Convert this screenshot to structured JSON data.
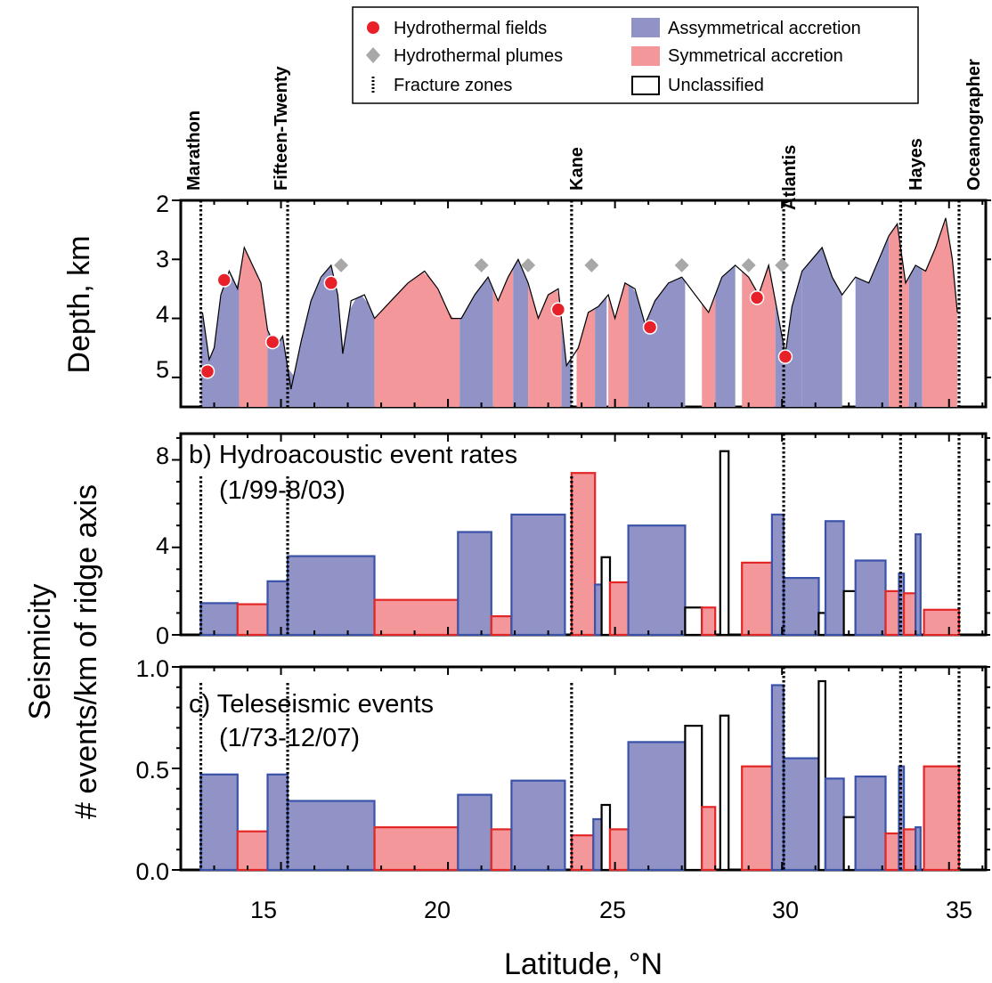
{
  "legend": {
    "items": [
      {
        "id": "hf",
        "label": "Hydrothermal fields",
        "symbol": "circle",
        "color": "#e8202a"
      },
      {
        "id": "hp",
        "label": "Hydrothermal plumes",
        "symbol": "diamond",
        "color": "#a8a8a8"
      },
      {
        "id": "fz",
        "label": "Fracture zones",
        "symbol": "dotted-line",
        "color": "#000000"
      },
      {
        "id": "asym",
        "label": "Assymmetrical accretion",
        "symbol": "box",
        "color": "#9193c7"
      },
      {
        "id": "sym",
        "label": "Symmetrical accretion",
        "symbol": "box",
        "color": "#f3979a"
      },
      {
        "id": "uncl",
        "label": "Unclassified",
        "symbol": "box-outline",
        "color": "#ffffff"
      }
    ]
  },
  "colors": {
    "asym_fill": "#9193c7",
    "asym_stroke": "#3a52a8",
    "sym_fill": "#f3979a",
    "sym_stroke": "#e32626",
    "uncl_stroke": "#000000",
    "hydrothermal_field": "#e8202a",
    "plume": "#a8a8a8"
  },
  "x_axis": {
    "label": "Latitude, °N",
    "ticks": [
      "15",
      "20",
      "25",
      "30",
      "35"
    ],
    "xlim": [
      12.0,
      36.1
    ]
  },
  "shared_y_label": {
    "line1": "Seismicity",
    "line2": "# events/km of ridge axis"
  },
  "fracture_zones": [
    {
      "name": "Marathon",
      "lat": 12.6
    },
    {
      "name": "Fifteen-Twenty",
      "lat": 15.2
    },
    {
      "name": "Kane",
      "lat": 23.7
    },
    {
      "name": "Atlantis",
      "lat": 30.05
    },
    {
      "name": "Hayes",
      "lat": 33.55
    },
    {
      "name": "Oceanographer",
      "lat": 35.3
    }
  ],
  "chart_data": [
    {
      "type": "area",
      "panel": "a",
      "ylabel": "Depth, km",
      "yticks": [
        "2",
        "3",
        "4",
        "5"
      ],
      "ylim": [
        5.5,
        2.0
      ],
      "profile": [
        {
          "lat": 12.65,
          "depth": 3.9
        },
        {
          "lat": 12.85,
          "depth": 4.7
        },
        {
          "lat": 13.0,
          "depth": 4.5
        },
        {
          "lat": 13.2,
          "depth": 3.6
        },
        {
          "lat": 13.45,
          "depth": 3.2
        },
        {
          "lat": 13.7,
          "depth": 3.5
        },
        {
          "lat": 13.9,
          "depth": 2.8
        },
        {
          "lat": 14.15,
          "depth": 3.1
        },
        {
          "lat": 14.4,
          "depth": 3.4
        },
        {
          "lat": 14.6,
          "depth": 4.2
        },
        {
          "lat": 14.85,
          "depth": 4.5
        },
        {
          "lat": 15.05,
          "depth": 4.3
        },
        {
          "lat": 15.3,
          "depth": 5.2
        },
        {
          "lat": 15.6,
          "depth": 4.4
        },
        {
          "lat": 15.9,
          "depth": 3.7
        },
        {
          "lat": 16.2,
          "depth": 3.3
        },
        {
          "lat": 16.5,
          "depth": 3.1
        },
        {
          "lat": 16.7,
          "depth": 3.6
        },
        {
          "lat": 16.85,
          "depth": 4.6
        },
        {
          "lat": 17.1,
          "depth": 3.7
        },
        {
          "lat": 17.5,
          "depth": 3.6
        },
        {
          "lat": 17.8,
          "depth": 4.0
        },
        {
          "lat": 18.3,
          "depth": 3.7
        },
        {
          "lat": 18.8,
          "depth": 3.4
        },
        {
          "lat": 19.3,
          "depth": 3.2
        },
        {
          "lat": 19.7,
          "depth": 3.5
        },
        {
          "lat": 20.1,
          "depth": 4.0
        },
        {
          "lat": 20.4,
          "depth": 4.0
        },
        {
          "lat": 20.8,
          "depth": 3.6
        },
        {
          "lat": 21.2,
          "depth": 3.3
        },
        {
          "lat": 21.5,
          "depth": 3.7
        },
        {
          "lat": 21.8,
          "depth": 3.3
        },
        {
          "lat": 22.1,
          "depth": 3.0
        },
        {
          "lat": 22.4,
          "depth": 3.4
        },
        {
          "lat": 22.7,
          "depth": 4.0
        },
        {
          "lat": 23.0,
          "depth": 3.6
        },
        {
          "lat": 23.3,
          "depth": 3.5
        },
        {
          "lat": 23.55,
          "depth": 4.8
        },
        {
          "lat": 23.9,
          "depth": 4.5
        },
        {
          "lat": 24.2,
          "depth": 3.9
        },
        {
          "lat": 24.5,
          "depth": 3.8
        },
        {
          "lat": 24.8,
          "depth": 3.6
        },
        {
          "lat": 25.0,
          "depth": 4.0
        },
        {
          "lat": 25.3,
          "depth": 3.4
        },
        {
          "lat": 25.6,
          "depth": 3.5
        },
        {
          "lat": 25.9,
          "depth": 4.1
        },
        {
          "lat": 26.2,
          "depth": 3.7
        },
        {
          "lat": 26.6,
          "depth": 3.4
        },
        {
          "lat": 27.0,
          "depth": 3.3
        },
        {
          "lat": 27.4,
          "depth": 3.6
        },
        {
          "lat": 27.8,
          "depth": 3.9
        },
        {
          "lat": 28.2,
          "depth": 3.3
        },
        {
          "lat": 28.6,
          "depth": 3.1
        },
        {
          "lat": 29.0,
          "depth": 3.3
        },
        {
          "lat": 29.3,
          "depth": 3.6
        },
        {
          "lat": 29.6,
          "depth": 3.1
        },
        {
          "lat": 29.9,
          "depth": 4.0
        },
        {
          "lat": 30.1,
          "depth": 4.6
        },
        {
          "lat": 30.3,
          "depth": 3.8
        },
        {
          "lat": 30.6,
          "depth": 3.2
        },
        {
          "lat": 30.9,
          "depth": 3.0
        },
        {
          "lat": 31.2,
          "depth": 2.8
        },
        {
          "lat": 31.5,
          "depth": 3.3
        },
        {
          "lat": 31.8,
          "depth": 3.6
        },
        {
          "lat": 32.2,
          "depth": 3.3
        },
        {
          "lat": 32.6,
          "depth": 3.4
        },
        {
          "lat": 32.9,
          "depth": 3.0
        },
        {
          "lat": 33.2,
          "depth": 2.6
        },
        {
          "lat": 33.45,
          "depth": 2.4
        },
        {
          "lat": 33.7,
          "depth": 3.4
        },
        {
          "lat": 34.0,
          "depth": 3.1
        },
        {
          "lat": 34.3,
          "depth": 3.2
        },
        {
          "lat": 34.6,
          "depth": 2.8
        },
        {
          "lat": 34.9,
          "depth": 2.3
        },
        {
          "lat": 35.1,
          "depth": 3.0
        },
        {
          "lat": 35.25,
          "depth": 3.9
        }
      ],
      "segments": [
        {
          "from": 12.6,
          "to": 13.75,
          "class": "asym"
        },
        {
          "from": 13.75,
          "to": 14.6,
          "class": "sym"
        },
        {
          "from": 14.6,
          "to": 15.2,
          "class": "asym"
        },
        {
          "from": 15.2,
          "to": 17.8,
          "class": "asym"
        },
        {
          "from": 17.8,
          "to": 20.35,
          "class": "sym"
        },
        {
          "from": 20.35,
          "to": 21.35,
          "class": "asym"
        },
        {
          "from": 21.35,
          "to": 21.95,
          "class": "sym"
        },
        {
          "from": 21.95,
          "to": 22.4,
          "class": "asym"
        },
        {
          "from": 22.4,
          "to": 23.4,
          "class": "sym"
        },
        {
          "from": 23.4,
          "to": 23.7,
          "class": "asym"
        },
        {
          "from": 23.85,
          "to": 24.4,
          "class": "sym"
        },
        {
          "from": 24.4,
          "to": 24.75,
          "class": "asym"
        },
        {
          "from": 24.8,
          "to": 25.4,
          "class": "sym"
        },
        {
          "from": 25.4,
          "to": 27.1,
          "class": "asym"
        },
        {
          "from": 27.6,
          "to": 28.0,
          "class": "sym"
        },
        {
          "from": 28.0,
          "to": 28.6,
          "class": "asym"
        },
        {
          "from": 28.8,
          "to": 29.8,
          "class": "sym"
        },
        {
          "from": 29.8,
          "to": 30.6,
          "class": "asym"
        },
        {
          "from": 30.6,
          "to": 31.8,
          "class": "asym"
        },
        {
          "from": 32.2,
          "to": 33.2,
          "class": "asym"
        },
        {
          "from": 33.2,
          "to": 33.8,
          "class": "sym"
        },
        {
          "from": 33.8,
          "to": 34.2,
          "class": "asym"
        },
        {
          "from": 34.2,
          "to": 35.25,
          "class": "sym"
        }
      ],
      "hydrothermal_fields": [
        {
          "lat": 12.8,
          "depth": 4.9
        },
        {
          "lat": 13.3,
          "depth": 3.35
        },
        {
          "lat": 14.75,
          "depth": 4.4
        },
        {
          "lat": 16.5,
          "depth": 3.4
        },
        {
          "lat": 23.3,
          "depth": 3.85
        },
        {
          "lat": 26.05,
          "depth": 4.15
        },
        {
          "lat": 29.25,
          "depth": 3.65
        },
        {
          "lat": 30.1,
          "depth": 4.65
        }
      ],
      "hydrothermal_plumes": [
        {
          "lat": 16.8,
          "depth": 3.1
        },
        {
          "lat": 21.0,
          "depth": 3.1
        },
        {
          "lat": 22.4,
          "depth": 3.1
        },
        {
          "lat": 24.3,
          "depth": 3.1
        },
        {
          "lat": 27.0,
          "depth": 3.1
        },
        {
          "lat": 29.0,
          "depth": 3.1
        },
        {
          "lat": 30.0,
          "depth": 3.1
        }
      ]
    },
    {
      "type": "bar",
      "panel": "b",
      "title": "b) Hydroacoustic event rates",
      "subtitle": "(1/99-8/03)",
      "yticks": [
        "0",
        "4",
        "8"
      ],
      "ylim": [
        0,
        9.2
      ],
      "bars": [
        {
          "from": 12.6,
          "to": 13.7,
          "value": 1.45,
          "class": "asym"
        },
        {
          "from": 13.7,
          "to": 14.6,
          "value": 1.4,
          "class": "sym"
        },
        {
          "from": 14.6,
          "to": 15.2,
          "value": 2.45,
          "class": "asym"
        },
        {
          "from": 15.2,
          "to": 17.8,
          "value": 3.6,
          "class": "asym"
        },
        {
          "from": 17.8,
          "to": 20.3,
          "value": 1.6,
          "class": "sym"
        },
        {
          "from": 20.3,
          "to": 21.3,
          "value": 4.7,
          "class": "asym"
        },
        {
          "from": 21.3,
          "to": 21.9,
          "value": 0.85,
          "class": "sym"
        },
        {
          "from": 21.9,
          "to": 23.5,
          "value": 5.5,
          "class": "asym"
        },
        {
          "from": 23.7,
          "to": 24.4,
          "value": 7.4,
          "class": "sym"
        },
        {
          "from": 24.4,
          "to": 24.6,
          "value": 2.3,
          "class": "asym"
        },
        {
          "from": 24.6,
          "to": 24.85,
          "value": 3.55,
          "class": "uncl"
        },
        {
          "from": 24.85,
          "to": 25.4,
          "value": 2.4,
          "class": "sym"
        },
        {
          "from": 25.4,
          "to": 27.1,
          "value": 5.0,
          "class": "asym"
        },
        {
          "from": 27.1,
          "to": 27.6,
          "value": 1.25,
          "class": "uncl"
        },
        {
          "from": 27.6,
          "to": 28.0,
          "value": 1.25,
          "class": "sym"
        },
        {
          "from": 28.15,
          "to": 28.4,
          "value": 8.4,
          "class": "uncl"
        },
        {
          "from": 28.8,
          "to": 29.7,
          "value": 3.3,
          "class": "sym"
        },
        {
          "from": 29.7,
          "to": 30.05,
          "value": 5.5,
          "class": "asym"
        },
        {
          "from": 30.05,
          "to": 31.1,
          "value": 2.6,
          "class": "asym"
        },
        {
          "from": 31.1,
          "to": 31.3,
          "value": 1.0,
          "class": "uncl"
        },
        {
          "from": 31.3,
          "to": 31.85,
          "value": 5.2,
          "class": "asym"
        },
        {
          "from": 31.85,
          "to": 32.2,
          "value": 2.0,
          "class": "uncl"
        },
        {
          "from": 32.2,
          "to": 33.1,
          "value": 3.4,
          "class": "asym"
        },
        {
          "from": 33.1,
          "to": 33.5,
          "value": 2.0,
          "class": "sym"
        },
        {
          "from": 33.5,
          "to": 33.65,
          "value": 2.8,
          "class": "asym"
        },
        {
          "from": 33.65,
          "to": 34.0,
          "value": 1.9,
          "class": "sym"
        },
        {
          "from": 34.0,
          "to": 34.15,
          "value": 4.6,
          "class": "asym"
        },
        {
          "from": 34.25,
          "to": 35.3,
          "value": 1.15,
          "class": "sym"
        }
      ]
    },
    {
      "type": "bar",
      "panel": "c",
      "title": "c) Teleseismic events",
      "subtitle": "(1/73-12/07)",
      "yticks": [
        "0.0",
        "0.5",
        "1.0"
      ],
      "ylim": [
        0,
        1.0
      ],
      "bars": [
        {
          "from": 12.6,
          "to": 13.7,
          "value": 0.47,
          "class": "asym"
        },
        {
          "from": 13.7,
          "to": 14.6,
          "value": 0.19,
          "class": "sym"
        },
        {
          "from": 14.6,
          "to": 15.2,
          "value": 0.47,
          "class": "asym"
        },
        {
          "from": 15.2,
          "to": 17.8,
          "value": 0.34,
          "class": "asym"
        },
        {
          "from": 17.8,
          "to": 20.3,
          "value": 0.21,
          "class": "sym"
        },
        {
          "from": 20.3,
          "to": 21.3,
          "value": 0.37,
          "class": "asym"
        },
        {
          "from": 21.3,
          "to": 21.9,
          "value": 0.2,
          "class": "sym"
        },
        {
          "from": 21.9,
          "to": 23.5,
          "value": 0.44,
          "class": "asym"
        },
        {
          "from": 23.7,
          "to": 24.35,
          "value": 0.17,
          "class": "sym"
        },
        {
          "from": 24.35,
          "to": 24.6,
          "value": 0.25,
          "class": "asym"
        },
        {
          "from": 24.6,
          "to": 24.85,
          "value": 0.32,
          "class": "uncl"
        },
        {
          "from": 24.85,
          "to": 25.4,
          "value": 0.2,
          "class": "sym"
        },
        {
          "from": 25.4,
          "to": 27.1,
          "value": 0.63,
          "class": "asym"
        },
        {
          "from": 27.1,
          "to": 27.6,
          "value": 0.71,
          "class": "uncl"
        },
        {
          "from": 27.6,
          "to": 28.0,
          "value": 0.31,
          "class": "sym"
        },
        {
          "from": 28.15,
          "to": 28.4,
          "value": 0.76,
          "class": "uncl"
        },
        {
          "from": 28.8,
          "to": 29.7,
          "value": 0.51,
          "class": "sym"
        },
        {
          "from": 29.7,
          "to": 30.05,
          "value": 0.91,
          "class": "asym"
        },
        {
          "from": 30.05,
          "to": 31.1,
          "value": 0.55,
          "class": "asym"
        },
        {
          "from": 31.1,
          "to": 31.3,
          "value": 0.93,
          "class": "uncl"
        },
        {
          "from": 31.3,
          "to": 31.85,
          "value": 0.45,
          "class": "asym"
        },
        {
          "from": 31.85,
          "to": 32.2,
          "value": 0.26,
          "class": "uncl"
        },
        {
          "from": 32.2,
          "to": 33.1,
          "value": 0.46,
          "class": "asym"
        },
        {
          "from": 33.1,
          "to": 33.5,
          "value": 0.18,
          "class": "sym"
        },
        {
          "from": 33.5,
          "to": 33.65,
          "value": 0.51,
          "class": "asym"
        },
        {
          "from": 33.65,
          "to": 34.0,
          "value": 0.2,
          "class": "sym"
        },
        {
          "from": 34.0,
          "to": 34.15,
          "value": 0.21,
          "class": "asym"
        },
        {
          "from": 34.25,
          "to": 35.3,
          "value": 0.51,
          "class": "sym"
        }
      ]
    }
  ]
}
